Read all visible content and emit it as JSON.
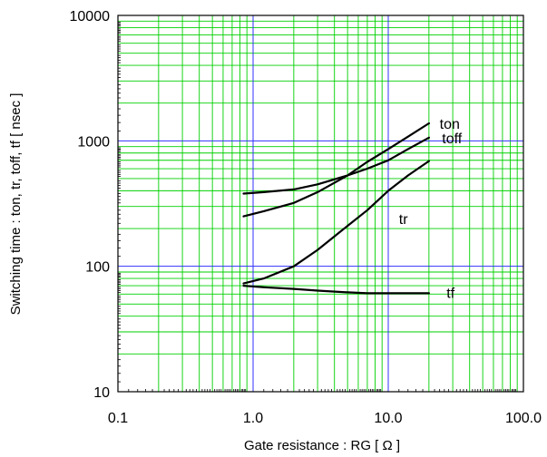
{
  "chart_data": {
    "type": "line",
    "x_scale": "log",
    "y_scale": "log",
    "xlim": [
      0.1,
      100
    ],
    "ylim": [
      10,
      10000
    ],
    "grid": true,
    "xlabel": "Gate resistance : RG [ Ω ]",
    "ylabel": "Switching time : ton, tr, toff, tf [ nsec ]",
    "x_ticks": [
      {
        "value": 0.1,
        "label": "0.1"
      },
      {
        "value": 1,
        "label": "1.0"
      },
      {
        "value": 10,
        "label": "10.0"
      },
      {
        "value": 100,
        "label": "100.0"
      }
    ],
    "y_ticks": [
      {
        "value": 10,
        "label": "10"
      },
      {
        "value": 100,
        "label": "100"
      },
      {
        "value": 1000,
        "label": "1000"
      },
      {
        "value": 10000,
        "label": "10000"
      }
    ],
    "colors": {
      "minor_grid": "#00d000",
      "major_grid": "#3030ff",
      "series_line": "#000000",
      "frame": "#000000"
    },
    "series": [
      {
        "name": "ton",
        "label_at": [
          24,
          1380
        ],
        "points": [
          [
            0.85,
            250
          ],
          [
            1.2,
            275
          ],
          [
            2,
            320
          ],
          [
            3,
            390
          ],
          [
            5,
            530
          ],
          [
            7,
            680
          ],
          [
            10,
            860
          ],
          [
            14,
            1080
          ],
          [
            20,
            1380
          ]
        ]
      },
      {
        "name": "toff",
        "label_at": [
          25,
          1060
        ],
        "points": [
          [
            0.85,
            380
          ],
          [
            1.2,
            390
          ],
          [
            2,
            410
          ],
          [
            3,
            450
          ],
          [
            5,
            530
          ],
          [
            7,
            600
          ],
          [
            10,
            700
          ],
          [
            14,
            860
          ],
          [
            20,
            1060
          ]
        ]
      },
      {
        "name": "tr",
        "label_at": [
          12,
          240
        ],
        "points": [
          [
            0.85,
            73
          ],
          [
            1.2,
            80
          ],
          [
            2,
            100
          ],
          [
            3,
            135
          ],
          [
            5,
            210
          ],
          [
            7,
            280
          ],
          [
            10,
            400
          ],
          [
            14,
            530
          ],
          [
            20,
            690
          ]
        ]
      },
      {
        "name": "tf",
        "label_at": [
          27,
          62
        ],
        "points": [
          [
            0.85,
            70
          ],
          [
            1.2,
            68
          ],
          [
            2,
            66
          ],
          [
            3,
            64
          ],
          [
            5,
            62
          ],
          [
            7,
            61
          ],
          [
            10,
            61
          ],
          [
            14,
            61
          ],
          [
            20,
            61
          ]
        ]
      }
    ]
  }
}
